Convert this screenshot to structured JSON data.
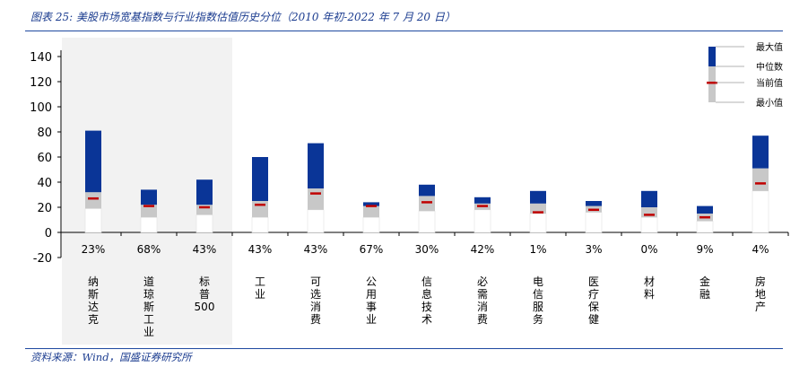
{
  "header": {
    "title": "图表 25:  美股市场宽基指数与行业指数估值历史分位（2010 年初-2022 年 7 月 20 日）"
  },
  "footer": {
    "source": "资料来源：Wind，国盛证券研究所"
  },
  "colors": {
    "upper": "#0a3597",
    "middle": "#c8c8c8",
    "lower": "#ffffff",
    "current": "#c00000",
    "shade": "#f2f2f2",
    "frame": "#1f4aa0"
  },
  "chart_data": {
    "type": "bar",
    "title": "",
    "xlabel": "",
    "ylabel": "",
    "ylim": [
      -20,
      150
    ],
    "yticks": [
      140,
      120,
      100,
      80,
      60,
      40,
      20,
      0,
      -20
    ],
    "categories": [
      "纳斯达克",
      "道琼斯工业",
      "标普500",
      "工业",
      "可选消费",
      "公用事业",
      "信息技术",
      "必需消费",
      "电信服务",
      "医疗保健",
      "材料",
      "金融",
      "房地产"
    ],
    "label_lines": [
      [
        "纳",
        "斯",
        "达",
        "克"
      ],
      [
        "道",
        "琼",
        "斯",
        "工",
        "业"
      ],
      [
        "标",
        "普",
        "500"
      ],
      [
        "工",
        "业"
      ],
      [
        "可",
        "选",
        "消",
        "费"
      ],
      [
        "公",
        "用",
        "事",
        "业"
      ],
      [
        "信",
        "息",
        "技",
        "术"
      ],
      [
        "必",
        "需",
        "消",
        "费"
      ],
      [
        "电",
        "信",
        "服",
        "务"
      ],
      [
        "医",
        "疗",
        "保",
        "健"
      ],
      [
        "材",
        "料"
      ],
      [
        "金",
        "融"
      ],
      [
        "房",
        "地",
        "产"
      ]
    ],
    "percentiles": [
      "23%",
      "68%",
      "43%",
      "43%",
      "43%",
      "67%",
      "30%",
      "42%",
      "1%",
      "3%",
      "0%",
      "9%",
      "4%"
    ],
    "series": [
      {
        "name": "最小值",
        "values": [
          19,
          12,
          14,
          12,
          18,
          12,
          17,
          18,
          15,
          16,
          12,
          9,
          33
        ]
      },
      {
        "name": "中位数",
        "values": [
          32,
          22,
          22,
          25,
          35,
          21,
          29,
          23,
          23,
          21,
          20,
          15,
          51
        ]
      },
      {
        "name": "最大值",
        "values": [
          81,
          34,
          42,
          60,
          71,
          24,
          38,
          28,
          33,
          25,
          33,
          21,
          77
        ]
      },
      {
        "name": "当前值",
        "values": [
          27,
          21,
          20,
          22,
          31,
          21,
          24,
          21,
          16,
          18,
          14,
          12,
          39
        ]
      }
    ],
    "shaded_categories": [
      "纳斯达克",
      "道琼斯工业",
      "标普500"
    ],
    "legend": {
      "position": "top-right",
      "entries": [
        "最大值",
        "中位数",
        "当前值",
        "最小值"
      ]
    }
  }
}
